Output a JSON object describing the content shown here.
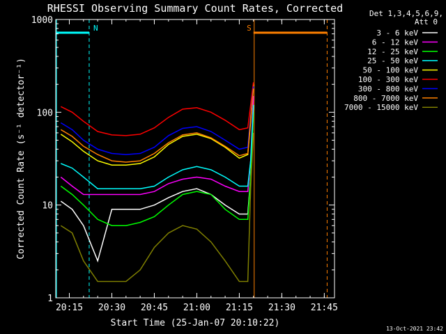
{
  "chart_data": {
    "type": "line",
    "title": "RHESSI Observing Summary Count Rates, Corrected",
    "xlabel": "Start Time (25-Jan-07 20:10:22)",
    "ylabel": "Corrected Count Rate (s⁻¹ detector⁻¹)",
    "yscale": "log",
    "ylim": [
      1,
      1000
    ],
    "xlim_minutes": [
      20.17,
      21.81
    ],
    "x_ticks": [
      "20:15",
      "20:30",
      "20:45",
      "21:00",
      "21:15",
      "21:30",
      "21:45"
    ],
    "y_ticks": [
      "1",
      "10",
      "100",
      "1000"
    ],
    "detectors": "Det 1,3,4,5,6,9,",
    "attenuator": "Att 0",
    "timestamp": "13-Oct-2021 23:42",
    "grid": false,
    "legend_position": "right",
    "flags": [
      {
        "label": "N",
        "color": "#00ffff",
        "start": "20:10",
        "end": "20:22"
      },
      {
        "label": "S",
        "color": "#ff8000",
        "start": "21:20",
        "end": "21:46"
      }
    ],
    "x": [
      "20:12",
      "20:16",
      "20:20",
      "20:25",
      "20:30",
      "20:35",
      "20:40",
      "20:45",
      "20:50",
      "20:55",
      "21:00",
      "21:05",
      "21:10",
      "21:15",
      "21:18",
      "21:19",
      "21:20"
    ],
    "series": [
      {
        "name": "3 - 6 keV",
        "color": "#ffffff",
        "values": [
          11,
          9,
          6,
          2.5,
          9,
          9,
          9,
          10,
          12,
          14,
          15,
          13,
          10,
          8,
          8,
          20,
          120
        ]
      },
      {
        "name": "6 - 12 keV",
        "color": "#ff00ff",
        "values": [
          20,
          16,
          13,
          13,
          13,
          13,
          13,
          14,
          17,
          19,
          20,
          19,
          16,
          14,
          14,
          30,
          150
        ]
      },
      {
        "name": "12 - 25 keV",
        "color": "#00ff00",
        "values": [
          16,
          13,
          10,
          7,
          6,
          6,
          6.5,
          7.5,
          10,
          13,
          14,
          13,
          9,
          7,
          7,
          20,
          100
        ]
      },
      {
        "name": "25 - 50 keV",
        "color": "#00ffff",
        "values": [
          28,
          25,
          20,
          15,
          15,
          15,
          15,
          16,
          20,
          24,
          26,
          24,
          20,
          16,
          16,
          30,
          120
        ]
      },
      {
        "name": "50 - 100 keV",
        "color": "#ffff00",
        "values": [
          58,
          48,
          38,
          30,
          27,
          27,
          28,
          33,
          45,
          55,
          58,
          52,
          42,
          32,
          35,
          80,
          200
        ]
      },
      {
        "name": "100 - 300 keV",
        "color": "#ff0000",
        "values": [
          115,
          100,
          80,
          62,
          57,
          56,
          58,
          68,
          88,
          108,
          112,
          100,
          82,
          65,
          68,
          120,
          210
        ]
      },
      {
        "name": "300 - 800 keV",
        "color": "#0000ff",
        "values": [
          77,
          65,
          50,
          40,
          36,
          35,
          36,
          42,
          56,
          67,
          70,
          62,
          50,
          40,
          42,
          90,
          190
        ]
      },
      {
        "name": "800 - 7000 keV",
        "color": "#ff8000",
        "values": [
          65,
          55,
          43,
          35,
          30,
          29,
          30,
          36,
          47,
          57,
          60,
          53,
          43,
          34,
          36,
          85,
          180
        ]
      },
      {
        "name": "7000 - 15000 keV",
        "color": "#808000",
        "values": [
          6,
          5,
          2.5,
          1.5,
          1.5,
          1.5,
          2,
          3.5,
          5,
          6,
          5.5,
          4,
          2.5,
          1.5,
          1.5,
          15,
          60
        ]
      }
    ]
  }
}
